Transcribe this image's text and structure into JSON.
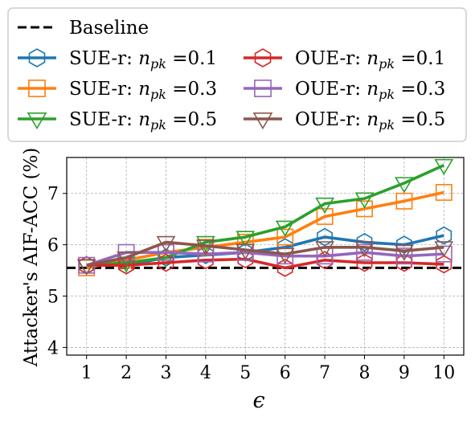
{
  "chart_data": {
    "type": "line",
    "title": "",
    "xlabel": "ϵ",
    "ylabel": "Attacker's AIF-ACC (%)",
    "x": [
      1,
      2,
      3,
      4,
      5,
      6,
      7,
      8,
      9,
      10
    ],
    "xlim": [
      0.5,
      10.5
    ],
    "ylim": [
      3.85,
      7.7
    ],
    "yticks": [
      4,
      5,
      6,
      7
    ],
    "grid": true,
    "legend_position": "top",
    "baseline": {
      "name": "Baseline",
      "value": 5.55,
      "color": "#000000",
      "style": "dashed"
    },
    "series": [
      {
        "name": "SUE-r: n_pk =0.1",
        "prefix": "SUE-r: ",
        "var": "n",
        "sub": "pk",
        "suffix": " =0.1",
        "color": "#1f77b4",
        "marker": "hexagon",
        "values": [
          5.6,
          5.6,
          5.75,
          5.8,
          5.85,
          5.95,
          6.15,
          6.05,
          6.0,
          6.18
        ]
      },
      {
        "name": "SUE-r: n_pk =0.3",
        "prefix": "SUE-r: ",
        "var": "n",
        "sub": "pk",
        "suffix": " =0.3",
        "color": "#ff7f0e",
        "marker": "square",
        "values": [
          5.55,
          5.7,
          5.85,
          5.95,
          6.05,
          6.15,
          6.55,
          6.7,
          6.85,
          7.02
        ]
      },
      {
        "name": "SUE-r: n_pk =0.5",
        "prefix": "SUE-r: ",
        "var": "n",
        "sub": "pk",
        "suffix": " =0.5",
        "color": "#2ca02c",
        "marker": "triangle-down",
        "values": [
          5.6,
          5.65,
          5.75,
          6.05,
          6.15,
          6.35,
          6.8,
          6.9,
          7.2,
          7.55
        ]
      },
      {
        "name": "OUE-r: n_pk =0.1",
        "prefix": "OUE-r: ",
        "var": "n",
        "sub": "pk",
        "suffix": " =0.1",
        "color": "#d62728",
        "marker": "hexagon",
        "values": [
          5.6,
          5.6,
          5.65,
          5.7,
          5.72,
          5.55,
          5.7,
          5.65,
          5.65,
          5.62
        ]
      },
      {
        "name": "OUE-r: n_pk =0.3",
        "prefix": "OUE-r: ",
        "var": "n",
        "sub": "pk",
        "suffix": " =0.3",
        "color": "#9467bd",
        "marker": "square",
        "values": [
          5.6,
          5.85,
          5.85,
          5.82,
          5.85,
          5.78,
          5.78,
          5.85,
          5.78,
          5.82
        ]
      },
      {
        "name": "OUE-r: n_pk =0.5",
        "prefix": "OUE-r: ",
        "var": "n",
        "sub": "pk",
        "suffix": " =0.5",
        "color": "#8c564b",
        "marker": "triangle-down",
        "values": [
          5.6,
          5.75,
          6.05,
          5.98,
          5.9,
          5.82,
          5.95,
          5.95,
          5.88,
          5.95
        ]
      }
    ]
  }
}
